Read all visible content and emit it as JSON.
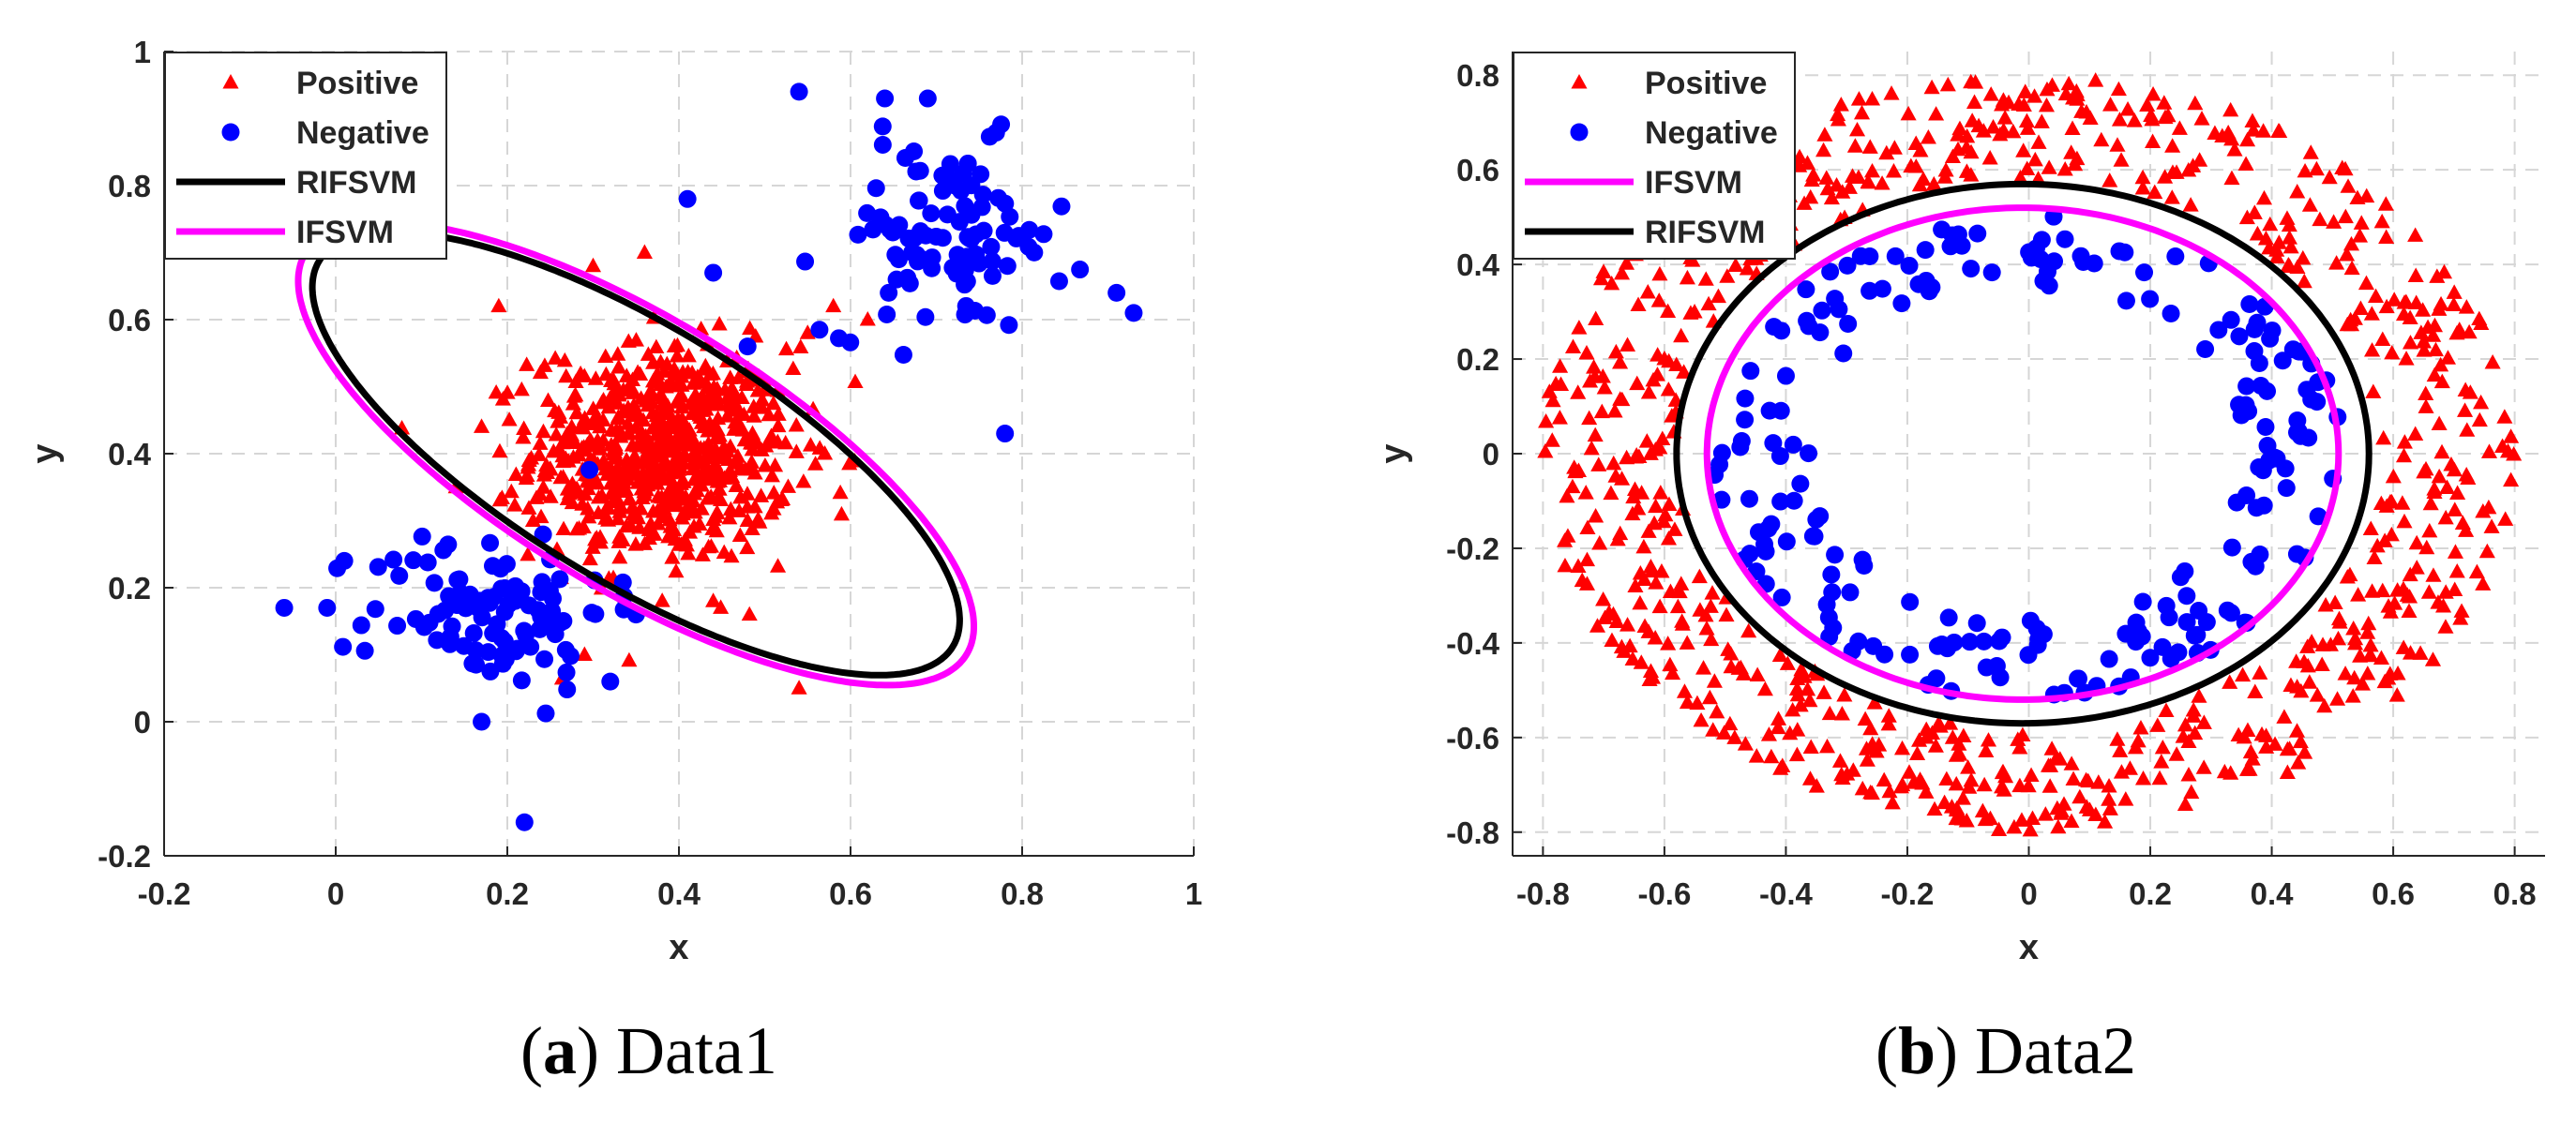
{
  "figure": {
    "panels": [
      {
        "caption_letter": "a",
        "caption_text": "Data1"
      },
      {
        "caption_letter": "b",
        "caption_text": "Data2"
      }
    ]
  },
  "chart_data": [
    {
      "type": "scatter",
      "title": "",
      "xlabel": "x",
      "ylabel": "y",
      "xlim": [
        -0.2,
        1
      ],
      "ylim": [
        -0.2,
        1
      ],
      "xticks": [
        -0.2,
        0,
        0.2,
        0.4,
        0.6,
        0.8,
        1
      ],
      "yticks": [
        -0.2,
        0,
        0.2,
        0.4,
        0.6,
        0.8,
        1
      ],
      "xtick_labels": [
        "-0.2",
        "0",
        "0.2",
        "0.4",
        "0.6",
        "0.8",
        "1"
      ],
      "ytick_labels": [
        "-0.2",
        "0",
        "0.2",
        "0.4",
        "0.6",
        "0.8",
        "1"
      ],
      "grid": true,
      "legend_position": "top-left",
      "legend": [
        "Positive",
        "Negative",
        "RIFSVM",
        "IFSVM"
      ],
      "series": [
        {
          "name": "Positive",
          "kind": "points",
          "marker": "triangle",
          "color": "#ff0000",
          "approx_count": 700,
          "clusters": [
            {
              "center": [
                0.38,
                0.4
              ],
              "spread": [
                0.075,
                0.08
              ]
            }
          ],
          "sample_points": [
            [
              0.19,
              0.62
            ],
            [
              0.3,
              0.68
            ],
            [
              0.36,
              0.7
            ],
            [
              0.55,
              0.58
            ],
            [
              0.58,
              0.62
            ],
            [
              0.62,
              0.6
            ],
            [
              0.54,
              0.05
            ],
            [
              0.29,
              0.1
            ],
            [
              0.48,
              0.3
            ],
            [
              0.57,
              0.4
            ],
            [
              0.17,
              0.44
            ],
            [
              0.14,
              0.35
            ],
            [
              0.44,
              0.18
            ],
            [
              0.23,
              0.3
            ]
          ]
        },
        {
          "name": "Negative",
          "kind": "points",
          "marker": "circle",
          "color": "#0000ff",
          "approx_count": 200,
          "clusters": [
            {
              "center": [
                0.71,
                0.72
              ],
              "spread": [
                0.07,
                0.07
              ]
            },
            {
              "center": [
                0.18,
                0.17
              ],
              "spread": [
                0.07,
                0.06
              ]
            }
          ],
          "sample_points": [
            [
              0.54,
              0.94
            ],
            [
              0.69,
              0.93
            ],
            [
              0.64,
              0.93
            ],
            [
              0.93,
              0.61
            ],
            [
              0.91,
              0.64
            ],
            [
              0.78,
              0.43
            ],
            [
              0.41,
              0.78
            ],
            [
              0.22,
              -0.15
            ],
            [
              -0.06,
              0.17
            ],
            [
              -0.01,
              0.17
            ],
            [
              0.01,
              0.24
            ],
            [
              0.17,
              0.0
            ],
            [
              0.48,
              0.56
            ],
            [
              0.44,
              0.67
            ],
            [
              0.35,
              0.16
            ],
            [
              0.32,
              0.06
            ]
          ]
        },
        {
          "name": "RIFSVM",
          "kind": "ellipse",
          "color": "#000000",
          "center": [
            0.35,
            0.4
          ],
          "semi_axes": [
            0.47,
            0.175
          ],
          "angle_deg": -40
        },
        {
          "name": "IFSVM",
          "kind": "ellipse",
          "color": "#ff00ff",
          "center": [
            0.35,
            0.4
          ],
          "semi_axes": [
            0.49,
            0.185
          ],
          "angle_deg": -40
        }
      ]
    },
    {
      "type": "scatter",
      "title": "",
      "xlabel": "x",
      "ylabel": "y",
      "xlim": [
        -0.85,
        0.85
      ],
      "ylim": [
        -0.85,
        0.85
      ],
      "xticks": [
        -0.8,
        -0.6,
        -0.4,
        -0.2,
        0,
        0.2,
        0.4,
        0.6,
        0.8
      ],
      "yticks": [
        -0.8,
        -0.6,
        -0.4,
        -0.2,
        0,
        0.2,
        0.4,
        0.6,
        0.8
      ],
      "xtick_labels": [
        "-0.8",
        "-0.6",
        "-0.4",
        "-0.2",
        "0",
        "0.2",
        "0.4",
        "0.6",
        "0.8"
      ],
      "ytick_labels": [
        "-0.8",
        "-0.6",
        "-0.4",
        "-0.2",
        "0",
        "0.2",
        "0.4",
        "0.6",
        "0.8"
      ],
      "grid": true,
      "legend_position": "top-left",
      "legend": [
        "Positive",
        "Negative",
        "IFSVM",
        "RIFSVM"
      ],
      "series": [
        {
          "name": "Positive",
          "kind": "points",
          "marker": "triangle",
          "color": "#ff0000",
          "approx_count": 800,
          "ring": {
            "center": [
              0,
              0
            ],
            "r_min": 0.58,
            "r_max": 0.8
          }
        },
        {
          "name": "Negative",
          "kind": "points",
          "marker": "circle",
          "color": "#0000ff",
          "approx_count": 220,
          "ring": {
            "center": [
              0,
              0
            ],
            "r_min": 0.35,
            "r_max": 0.52
          }
        },
        {
          "name": "IFSVM",
          "kind": "ellipse",
          "color": "#ff00ff",
          "center": [
            -0.01,
            0.0
          ],
          "semi_axes": [
            0.52,
            0.52
          ],
          "angle_deg": 0
        },
        {
          "name": "RIFSVM",
          "kind": "ellipse",
          "color": "#000000",
          "center": [
            -0.01,
            0.0
          ],
          "semi_axes": [
            0.57,
            0.57
          ],
          "angle_deg": 0
        }
      ]
    }
  ]
}
